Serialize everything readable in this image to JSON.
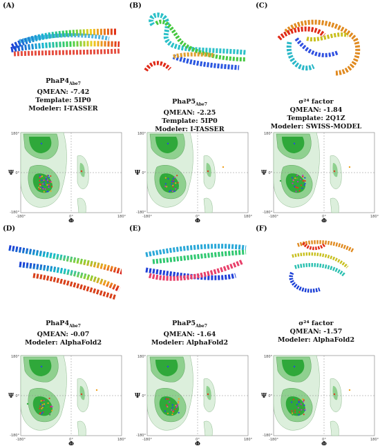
{
  "panels": [
    {
      "letter": "(A)",
      "title": "PhaP4",
      "title_sub": "Abe7",
      "lines": [
        "QMEAN: -7.42",
        "Template: 5IP0",
        "Modeler: I-TASSER"
      ],
      "struct": "helix-bundle-long"
    },
    {
      "letter": "(B)",
      "title": "PhaP5",
      "title_sub": "Abe7",
      "lines": [
        "QMEAN: -2.25",
        "Template: 5IP0",
        "Modeler: I-TASSER"
      ],
      "struct": "helix-fold"
    },
    {
      "letter": "(C)",
      "title": "σ²⁴ factor",
      "title_sub": "",
      "lines": [
        "QMEAN: -1.84",
        "Template: 2Q1Z",
        "Modeler: SWISS-MODEL"
      ],
      "struct": "globular"
    },
    {
      "letter": "(D)",
      "title": "PhaP4",
      "title_sub": "Abe7",
      "lines": [
        "QMEAN: -0.07",
        "Modeler: AlphaFold2"
      ],
      "struct": "helix-bundle-diag"
    },
    {
      "letter": "(E)",
      "title": "PhaP5",
      "title_sub": "Abe7",
      "lines": [
        "QMEAN: -1.64",
        "Modeler: AlphaFold2"
      ],
      "struct": "helix-pair"
    },
    {
      "letter": "(F)",
      "title": "σ²⁴ factor",
      "title_sub": "",
      "lines": [
        "QMEAN: -1.57",
        "Modeler: AlphaFold2"
      ],
      "struct": "globular-2"
    }
  ],
  "ramachandran": {
    "x_label": "Φ",
    "y_label": "Ψ",
    "x_ticks": [
      "-180°",
      "0°",
      "180°"
    ],
    "y_ticks": [
      "180°",
      "0°",
      "-180°"
    ]
  }
}
